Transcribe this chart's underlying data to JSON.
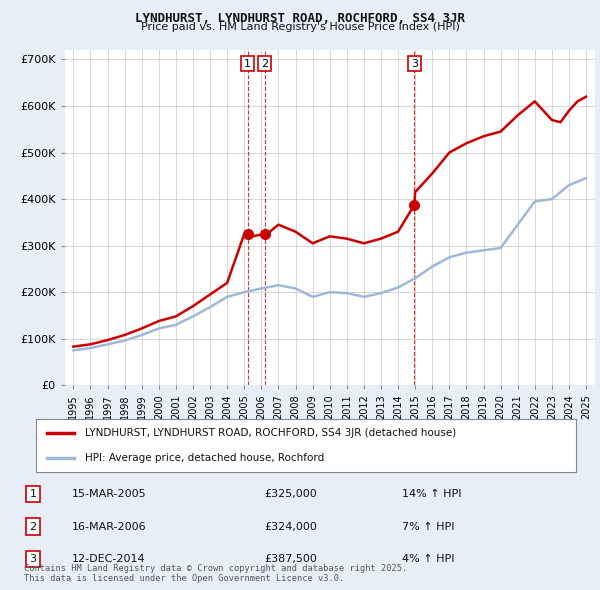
{
  "title": "LYNDHURST, LYNDHURST ROAD, ROCHFORD, SS4 3JR",
  "subtitle": "Price paid vs. HM Land Registry's House Price Index (HPI)",
  "ylabel_ticks": [
    "£0",
    "£100K",
    "£200K",
    "£300K",
    "£400K",
    "£500K",
    "£600K",
    "£700K"
  ],
  "ytick_values": [
    0,
    100000,
    200000,
    300000,
    400000,
    500000,
    600000,
    700000
  ],
  "ylim": [
    0,
    720000
  ],
  "background_color": "#e8eef8",
  "plot_background": "#ffffff",
  "grid_color": "#c8c8c8",
  "hpi_color": "#a0b8d8",
  "price_color": "#cc0000",
  "marker_color": "#cc0000",
  "legend_label_price": "LYNDHURST, LYNDHURST ROAD, ROCHFORD, SS4 3JR (detached house)",
  "legend_label_hpi": "HPI: Average price, detached house, Rochford",
  "sales": [
    {
      "num": 1,
      "date": "15-MAR-2005",
      "price": "£325,000",
      "pct": "14%",
      "dir": "↑",
      "vs": "HPI",
      "year": 2005.2
    },
    {
      "num": 2,
      "date": "16-MAR-2006",
      "price": "£324,000",
      "pct": "7%",
      "dir": "↑",
      "vs": "HPI",
      "year": 2006.2
    },
    {
      "num": 3,
      "date": "12-DEC-2014",
      "price": "£387,500",
      "pct": "4%",
      "dir": "↑",
      "vs": "HPI",
      "year": 2014.95
    }
  ],
  "footer": "Contains HM Land Registry data © Crown copyright and database right 2025.\nThis data is licensed under the Open Government Licence v3.0.",
  "hpi_data_x": [
    1995,
    1996,
    1997,
    1998,
    1999,
    2000,
    2001,
    2002,
    2003,
    2004,
    2005,
    2006,
    2007,
    2008,
    2009,
    2010,
    2011,
    2012,
    2013,
    2014,
    2015,
    2016,
    2017,
    2018,
    2019,
    2020,
    2021,
    2022,
    2023,
    2024,
    2025
  ],
  "hpi_data_y": [
    75000,
    80000,
    88000,
    96000,
    108000,
    122000,
    130000,
    148000,
    168000,
    190000,
    200000,
    208000,
    215000,
    208000,
    190000,
    200000,
    198000,
    190000,
    198000,
    210000,
    230000,
    255000,
    275000,
    285000,
    290000,
    295000,
    345000,
    395000,
    400000,
    430000,
    445000
  ],
  "price_data_x": [
    1995,
    1996,
    1997,
    1998,
    1999,
    2000,
    2001,
    2002,
    2003,
    2004,
    2005,
    2005.5,
    2006,
    2006.5,
    2007,
    2008,
    2009,
    2010,
    2011,
    2012,
    2013,
    2014,
    2014.95,
    2015,
    2016,
    2017,
    2018,
    2019,
    2020,
    2021,
    2022,
    2022.5,
    2023,
    2023.5,
    2024,
    2024.5,
    2025
  ],
  "price_data_y": [
    83000,
    88000,
    97000,
    108000,
    122000,
    138000,
    148000,
    170000,
    195000,
    220000,
    325000,
    320000,
    324000,
    330000,
    345000,
    330000,
    305000,
    320000,
    315000,
    305000,
    315000,
    330000,
    387500,
    415000,
    455000,
    500000,
    520000,
    535000,
    545000,
    580000,
    610000,
    590000,
    570000,
    565000,
    590000,
    610000,
    620000
  ]
}
